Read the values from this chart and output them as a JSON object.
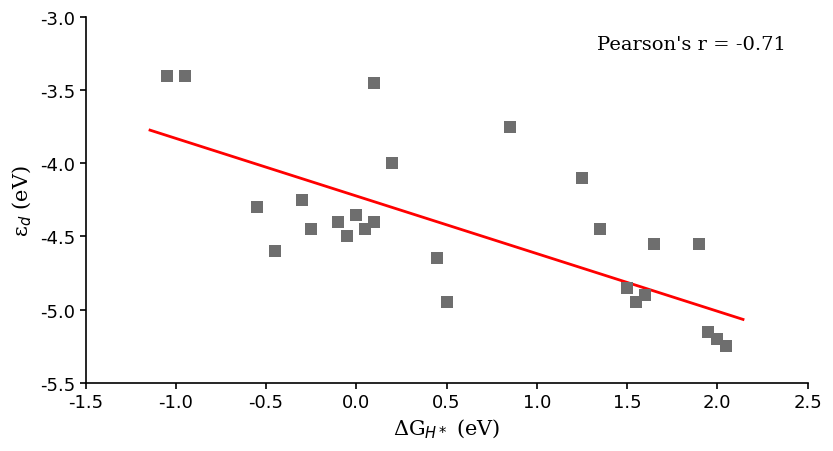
{
  "x_data": [
    -1.05,
    -0.95,
    0.1,
    -0.55,
    -0.45,
    -0.3,
    -0.25,
    -0.1,
    -0.05,
    0.0,
    0.05,
    0.1,
    0.2,
    0.45,
    0.5,
    0.85,
    1.25,
    1.35,
    1.5,
    1.55,
    1.6,
    1.65,
    1.9,
    1.95,
    2.0,
    2.05
  ],
  "y_data": [
    -3.4,
    -3.4,
    -3.45,
    -4.3,
    -4.6,
    -4.25,
    -4.45,
    -4.4,
    -4.5,
    -4.35,
    -4.45,
    -4.4,
    -4.0,
    -4.65,
    -4.95,
    -3.75,
    -4.1,
    -4.45,
    -4.85,
    -4.95,
    -4.9,
    -4.55,
    -4.55,
    -5.15,
    -5.2,
    -5.25
  ],
  "line_x": [
    -1.15,
    2.15
  ],
  "line_y": [
    -3.77,
    -5.07
  ],
  "marker_color": "#6e6e6e",
  "line_color": "#ff0000",
  "xlabel": "ΔG$_{{H*}}$ (eV)",
  "ylabel": "ε$_d$ (eV)",
  "annotation": "Pearson's r = -0.71",
  "xlim": [
    -1.5,
    2.5
  ],
  "ylim": [
    -5.5,
    -3.0
  ],
  "xticks": [
    -1.5,
    -1.0,
    -0.5,
    0.0,
    0.5,
    1.0,
    1.5,
    2.0,
    2.5
  ],
  "yticks": [
    -5.5,
    -5.0,
    -4.5,
    -4.0,
    -3.5,
    -3.0
  ],
  "marker_size": 75,
  "marker_style": "s",
  "annot_fontsize": 14,
  "label_fontsize": 15,
  "tick_fontsize": 13
}
